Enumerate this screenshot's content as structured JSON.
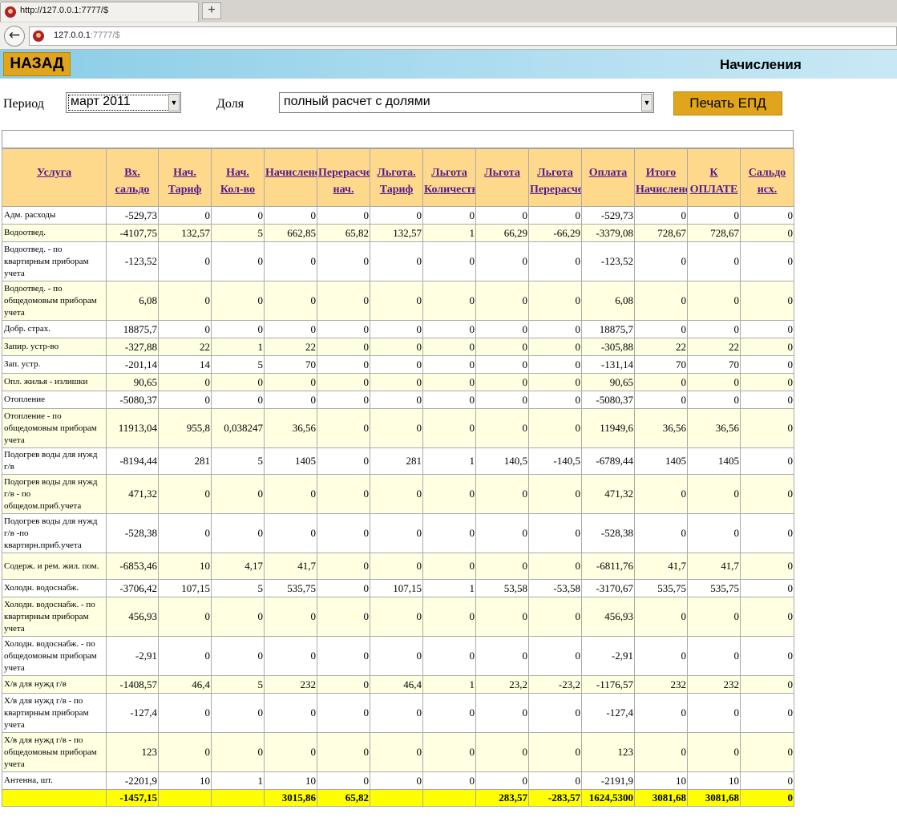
{
  "browser": {
    "tab_title": "http://127.0.0.1:7777/$",
    "new_tab_label": "+",
    "url_host": "127.0.0.1",
    "url_rest": ":7777/$"
  },
  "header": {
    "back_label": "НАЗАД",
    "title": "Начисления"
  },
  "filters": {
    "period_label": "Период",
    "period_value": "март 2011",
    "share_label": "Доля",
    "share_value": "полный расчет с долями",
    "print_label": "Печать ЕПД"
  },
  "table": {
    "columns": [
      [
        "Услуга"
      ],
      [
        "Вх.",
        "сальдо"
      ],
      [
        "Нач.",
        "Тариф"
      ],
      [
        "Нач.",
        "Кол-во"
      ],
      [
        "Начислено"
      ],
      [
        "Перерасчет",
        "нач."
      ],
      [
        "Льгота.",
        "Тариф"
      ],
      [
        "Льгота",
        "Количество"
      ],
      [
        "Льгота"
      ],
      [
        "Льгота",
        "Перерасчет"
      ],
      [
        "Оплата"
      ],
      [
        "Итого",
        "Начислено"
      ],
      [
        "К",
        "ОПЛАТЕ"
      ],
      [
        "Сальдо",
        "исх."
      ]
    ],
    "rows": [
      [
        "Адм. расходы",
        "-529,73",
        "0",
        "0",
        "0",
        "0",
        "0",
        "0",
        "0",
        "0",
        "-529,73",
        "0",
        "0",
        "0"
      ],
      [
        "Водоотвед.",
        "-4107,75",
        "132,57",
        "5",
        "662,85",
        "65,82",
        "132,57",
        "1",
        "66,29",
        "-66,29",
        "-3379,08",
        "728,67",
        "728,67",
        "0"
      ],
      [
        "Водоотвед. - по квартирным приборам учета",
        "-123,52",
        "0",
        "0",
        "0",
        "0",
        "0",
        "0",
        "0",
        "0",
        "-123,52",
        "0",
        "0",
        "0"
      ],
      [
        "Водоотвед. - по общедомовым приборам учета",
        "6,08",
        "0",
        "0",
        "0",
        "0",
        "0",
        "0",
        "0",
        "0",
        "6,08",
        "0",
        "0",
        "0"
      ],
      [
        "Добр. страх.",
        "18875,7",
        "0",
        "0",
        "0",
        "0",
        "0",
        "0",
        "0",
        "0",
        "18875,7",
        "0",
        "0",
        "0"
      ],
      [
        "Запир. устр-во",
        "-327,88",
        "22",
        "1",
        "22",
        "0",
        "0",
        "0",
        "0",
        "0",
        "-305,88",
        "22",
        "22",
        "0"
      ],
      [
        "Зап. устр.",
        "-201,14",
        "14",
        "5",
        "70",
        "0",
        "0",
        "0",
        "0",
        "0",
        "-131,14",
        "70",
        "70",
        "0"
      ],
      [
        "Опл. жилья - излишки",
        "90,65",
        "0",
        "0",
        "0",
        "0",
        "0",
        "0",
        "0",
        "0",
        "90,65",
        "0",
        "0",
        "0"
      ],
      [
        "Отопление",
        "-5080,37",
        "0",
        "0",
        "0",
        "0",
        "0",
        "0",
        "0",
        "0",
        "-5080,37",
        "0",
        "0",
        "0"
      ],
      [
        "Отопление - по общедомовым приборам учета",
        "11913,04",
        "955,8",
        "0,038247",
        "36,56",
        "0",
        "0",
        "0",
        "0",
        "0",
        "11949,6",
        "36,56",
        "36,56",
        "0"
      ],
      [
        "Подогрев воды для нужд г/в",
        "-8194,44",
        "281",
        "5",
        "1405",
        "0",
        "281",
        "1",
        "140,5",
        "-140,5",
        "-6789,44",
        "1405",
        "1405",
        "0"
      ],
      [
        "Подогрев воды для нужд г/в - по общедом.приб.учета",
        "471,32",
        "0",
        "0",
        "0",
        "0",
        "0",
        "0",
        "0",
        "0",
        "471,32",
        "0",
        "0",
        "0"
      ],
      [
        "Подогрев воды для нужд г/в -по квартирн.приб.учета",
        "-528,38",
        "0",
        "0",
        "0",
        "0",
        "0",
        "0",
        "0",
        "0",
        "-528,38",
        "0",
        "0",
        "0"
      ],
      [
        "Содерж. и рем. жил. пом.",
        "-6853,46",
        "10",
        "4,17",
        "41,7",
        "0",
        "0",
        "0",
        "0",
        "0",
        "-6811,76",
        "41,7",
        "41,7",
        "0"
      ],
      [
        "Холодн. водоснабж.",
        "-3706,42",
        "107,15",
        "5",
        "535,75",
        "0",
        "107,15",
        "1",
        "53,58",
        "-53,58",
        "-3170,67",
        "535,75",
        "535,75",
        "0"
      ],
      [
        "Холодн. водоснабж. - по квартирным приборам учета",
        "456,93",
        "0",
        "0",
        "0",
        "0",
        "0",
        "0",
        "0",
        "0",
        "456,93",
        "0",
        "0",
        "0"
      ],
      [
        "Холодн. водоснабж. - по общедомовым приборам учета",
        "-2,91",
        "0",
        "0",
        "0",
        "0",
        "0",
        "0",
        "0",
        "0",
        "-2,91",
        "0",
        "0",
        "0"
      ],
      [
        "Х/в для нужд г/в",
        "-1408,57",
        "46,4",
        "5",
        "232",
        "0",
        "46,4",
        "1",
        "23,2",
        "-23,2",
        "-1176,57",
        "232",
        "232",
        "0"
      ],
      [
        "Х/в для нужд г/в - по квартирным приборам учета",
        "-127,4",
        "0",
        "0",
        "0",
        "0",
        "0",
        "0",
        "0",
        "0",
        "-127,4",
        "0",
        "0",
        "0"
      ],
      [
        "Х/в для нужд г/в - по общедомовым приборам учета",
        "123",
        "0",
        "0",
        "0",
        "0",
        "0",
        "0",
        "0",
        "0",
        "123",
        "0",
        "0",
        "0"
      ],
      [
        "Антенна, шт.",
        "-2201,9",
        "10",
        "1",
        "10",
        "0",
        "0",
        "0",
        "0",
        "0",
        "-2191,9",
        "10",
        "10",
        "0"
      ]
    ],
    "total": [
      "",
      "-1457,15",
      "",
      "",
      "3015,86",
      "65,82",
      "",
      "",
      "283,57",
      "-283,57",
      "1624,5300",
      "3081,68",
      "3081,68",
      "0"
    ]
  }
}
